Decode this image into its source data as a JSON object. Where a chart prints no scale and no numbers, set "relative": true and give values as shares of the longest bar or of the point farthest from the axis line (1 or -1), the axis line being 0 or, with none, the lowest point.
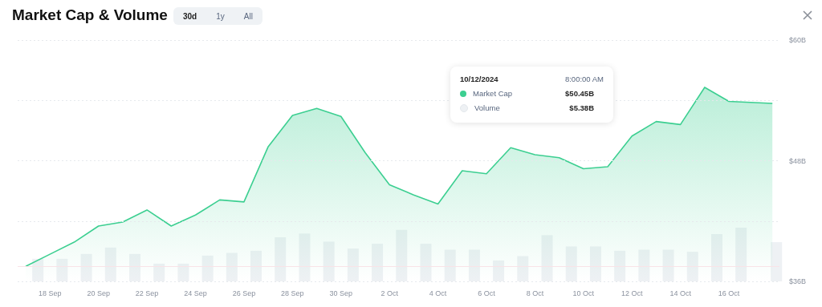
{
  "chart_data": [
    {
      "type": "area",
      "title": "Market Cap & Volume",
      "x": [
        "2024-09-17",
        "2024-09-18",
        "2024-09-19",
        "2024-09-20",
        "2024-09-21",
        "2024-09-22",
        "2024-09-23",
        "2024-09-24",
        "2024-09-25",
        "2024-09-26",
        "2024-09-27",
        "2024-09-28",
        "2024-09-29",
        "2024-09-30",
        "2024-10-01",
        "2024-10-02",
        "2024-10-03",
        "2024-10-04",
        "2024-10-05",
        "2024-10-06",
        "2024-10-07",
        "2024-10-08",
        "2024-10-09",
        "2024-10-10",
        "2024-10-11",
        "2024-10-12",
        "2024-10-13",
        "2024-10-14",
        "2024-10-15",
        "2024-10-16",
        "2024-10-17T19:00"
      ],
      "series": [
        {
          "name": "Market Cap",
          "color": "#3ccf91",
          "values": [
            37.5,
            38.7,
            39.9,
            41.5,
            41.9,
            43.1,
            41.5,
            42.6,
            44.1,
            43.9,
            49.4,
            52.5,
            53.2,
            52.4,
            48.8,
            45.6,
            44.6,
            43.7,
            47.0,
            46.7,
            49.3,
            48.6,
            48.3,
            47.2,
            47.4,
            50.45,
            51.9,
            51.6,
            55.3,
            53.9,
            53.7
          ]
        }
      ],
      "xlim": [
        "2024-09-16T16:00",
        "2024-10-18T02:00"
      ],
      "xticks": [
        {
          "value": "2024-09-18",
          "label": "18 Sep"
        },
        {
          "value": "2024-09-20",
          "label": "20 Sep"
        },
        {
          "value": "2024-09-22",
          "label": "22 Sep"
        },
        {
          "value": "2024-09-24",
          "label": "24 Sep"
        },
        {
          "value": "2024-09-26",
          "label": "26 Sep"
        },
        {
          "value": "2024-09-28",
          "label": "28 Sep"
        },
        {
          "value": "2024-09-30",
          "label": "30 Sep"
        },
        {
          "value": "2024-10-02",
          "label": "2 Oct"
        },
        {
          "value": "2024-10-04",
          "label": "4 Oct"
        },
        {
          "value": "2024-10-06",
          "label": "6 Oct"
        },
        {
          "value": "2024-10-08",
          "label": "8 Oct"
        },
        {
          "value": "2024-10-10",
          "label": "10 Oct"
        },
        {
          "value": "2024-10-12",
          "label": "12 Oct"
        },
        {
          "value": "2024-10-14",
          "label": "14 Oct"
        },
        {
          "value": "2024-10-16",
          "label": "16 Oct"
        }
      ],
      "ylim": [
        36,
        60
      ],
      "yticks": [
        {
          "value": 36,
          "label": "$36B"
        },
        {
          "value": 42,
          "label": null
        },
        {
          "value": 48,
          "label": "$48B"
        },
        {
          "value": 54,
          "label": null
        },
        {
          "value": 60,
          "label": "$60B"
        }
      ],
      "grid": "y",
      "legend": "top",
      "ref_lines": [
        {
          "axis": "y",
          "value": 37.5,
          "color": "#f9e3e7"
        }
      ],
      "annotations": [
        "30d",
        "1y",
        "All",
        "10/12/2024",
        "8:00:00 AM",
        "$50.45B",
        "$5.38B"
      ]
    },
    {
      "type": "bar",
      "relative": true,
      "x": [
        "2024-09-17T12:00",
        "2024-09-18T12:00",
        "2024-09-19T12:00",
        "2024-09-20T12:00",
        "2024-09-21T12:00",
        "2024-09-22T12:00",
        "2024-09-23T12:00",
        "2024-09-24T12:00",
        "2024-09-25T12:00",
        "2024-09-26T12:00",
        "2024-09-27T12:00",
        "2024-09-28T12:00",
        "2024-09-29T12:00",
        "2024-09-30T12:00",
        "2024-10-01T12:00",
        "2024-10-02T12:00",
        "2024-10-03T12:00",
        "2024-10-04T12:00",
        "2024-10-05T12:00",
        "2024-10-06T12:00",
        "2024-10-07T12:00",
        "2024-10-08T12:00",
        "2024-10-09T12:00",
        "2024-10-10T12:00",
        "2024-10-11T12:00",
        "2024-10-12T12:00",
        "2024-10-13T12:00",
        "2024-10-14T12:00",
        "2024-10-15T12:00",
        "2024-10-16T12:00",
        "2024-10-17T23:00"
      ],
      "xlim": [
        "2024-09-16T16:00",
        "2024-10-18T02:00"
      ],
      "series": [
        {
          "name": "Volume",
          "color": "#eef1f4",
          "values": [
            0.42,
            0.42,
            0.51,
            0.63,
            0.51,
            0.33,
            0.33,
            0.48,
            0.53,
            0.57,
            0.82,
            0.89,
            0.74,
            0.61,
            0.7,
            0.96,
            0.7,
            0.59,
            0.59,
            0.39,
            0.47,
            0.86,
            0.65,
            0.65,
            0.57,
            0.59,
            0.59,
            0.55,
            0.88,
            1,
            0.73
          ]
        }
      ]
    }
  ]
}
